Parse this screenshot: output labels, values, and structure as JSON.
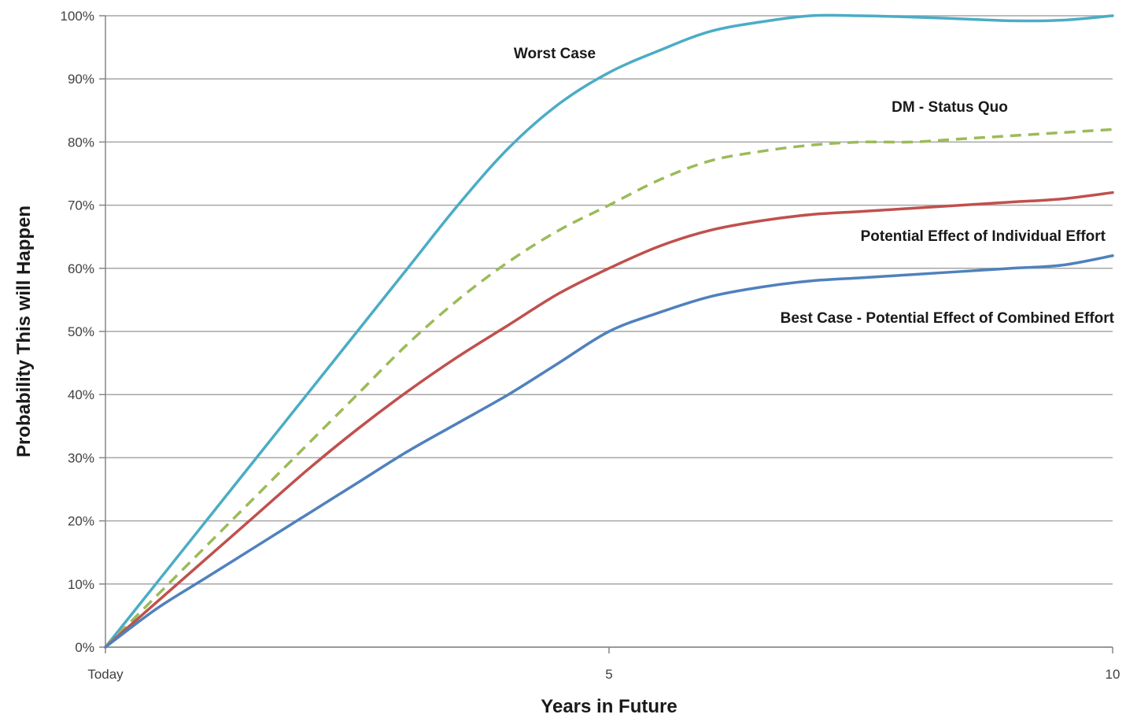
{
  "chart_data": {
    "type": "line",
    "xlabel": "Years in Future",
    "ylabel": "Probability This will Happen",
    "xlim": [
      0,
      10
    ],
    "ylim": [
      0,
      1
    ],
    "x_ticks": [
      {
        "value": 0,
        "label": "Today"
      },
      {
        "value": 5,
        "label": "5"
      },
      {
        "value": 10,
        "label": "10"
      }
    ],
    "y_ticks": [
      {
        "value": 0,
        "label": "0%"
      },
      {
        "value": 0.1,
        "label": "10%"
      },
      {
        "value": 0.2,
        "label": "20%"
      },
      {
        "value": 0.3,
        "label": "30%"
      },
      {
        "value": 0.4,
        "label": "40%"
      },
      {
        "value": 0.5,
        "label": "50%"
      },
      {
        "value": 0.6,
        "label": "60%"
      },
      {
        "value": 0.7,
        "label": "70%"
      },
      {
        "value": 0.8,
        "label": "80%"
      },
      {
        "value": 0.9,
        "label": "90%"
      },
      {
        "value": 1.0,
        "label": "100%"
      }
    ],
    "grid": true,
    "legend": "none (direct labels)",
    "series": [
      {
        "name": "Worst Case",
        "color": "#4bacc6",
        "dash": false,
        "x": [
          0,
          0.5,
          1,
          1.5,
          2,
          2.5,
          3,
          3.5,
          4,
          4.5,
          5,
          5.5,
          6,
          6.5,
          7,
          7.5,
          8,
          8.5,
          9,
          9.5,
          10
        ],
        "y": [
          0,
          0.1,
          0.2,
          0.3,
          0.4,
          0.5,
          0.6,
          0.7,
          0.79,
          0.86,
          0.91,
          0.945,
          0.975,
          0.99,
          1.0,
          1.0,
          0.998,
          0.995,
          0.992,
          0.993,
          1.0
        ]
      },
      {
        "name": "DM - Status Quo",
        "color": "#9bbb59",
        "dash": true,
        "x": [
          0,
          0.5,
          1,
          1.5,
          2,
          2.5,
          3,
          3.5,
          4,
          4.5,
          5,
          5.5,
          6,
          6.5,
          7,
          7.5,
          8,
          8.5,
          9,
          9.5,
          10
        ],
        "y": [
          0,
          0.08,
          0.16,
          0.24,
          0.32,
          0.4,
          0.48,
          0.55,
          0.61,
          0.66,
          0.7,
          0.74,
          0.77,
          0.785,
          0.795,
          0.8,
          0.8,
          0.805,
          0.81,
          0.815,
          0.82
        ]
      },
      {
        "name": "Potential Effect of Individual  Effort",
        "color": "#c0504d",
        "dash": false,
        "x": [
          0,
          0.5,
          1,
          1.5,
          2,
          2.5,
          3,
          3.5,
          4,
          4.5,
          5,
          5.5,
          6,
          6.5,
          7,
          7.5,
          8,
          8.5,
          9,
          9.5,
          10
        ],
        "y": [
          0,
          0.07,
          0.14,
          0.21,
          0.28,
          0.345,
          0.405,
          0.46,
          0.51,
          0.56,
          0.6,
          0.635,
          0.66,
          0.675,
          0.685,
          0.69,
          0.695,
          0.7,
          0.705,
          0.71,
          0.72
        ]
      },
      {
        "name": "Best Case - Potential Effect of Combined Effort",
        "color": "#4f81bd",
        "dash": false,
        "x": [
          0,
          0.5,
          1,
          1.5,
          2,
          2.5,
          3,
          3.5,
          4,
          4.5,
          5,
          5.5,
          6,
          6.5,
          7,
          7.5,
          8,
          8.5,
          9,
          9.5,
          10
        ],
        "y": [
          0,
          0.06,
          0.11,
          0.16,
          0.21,
          0.26,
          0.31,
          0.355,
          0.4,
          0.45,
          0.5,
          0.53,
          0.555,
          0.57,
          0.58,
          0.585,
          0.59,
          0.595,
          0.6,
          0.605,
          0.62
        ]
      }
    ],
    "annotations": [
      {
        "text": "Worst Case",
        "series": 0
      },
      {
        "text": "DM - Status Quo",
        "series": 1
      },
      {
        "text": "Potential Effect of Individual  Effort",
        "series": 2
      },
      {
        "text": "Best Case - Potential Effect of Combined Effort",
        "series": 3
      }
    ]
  }
}
